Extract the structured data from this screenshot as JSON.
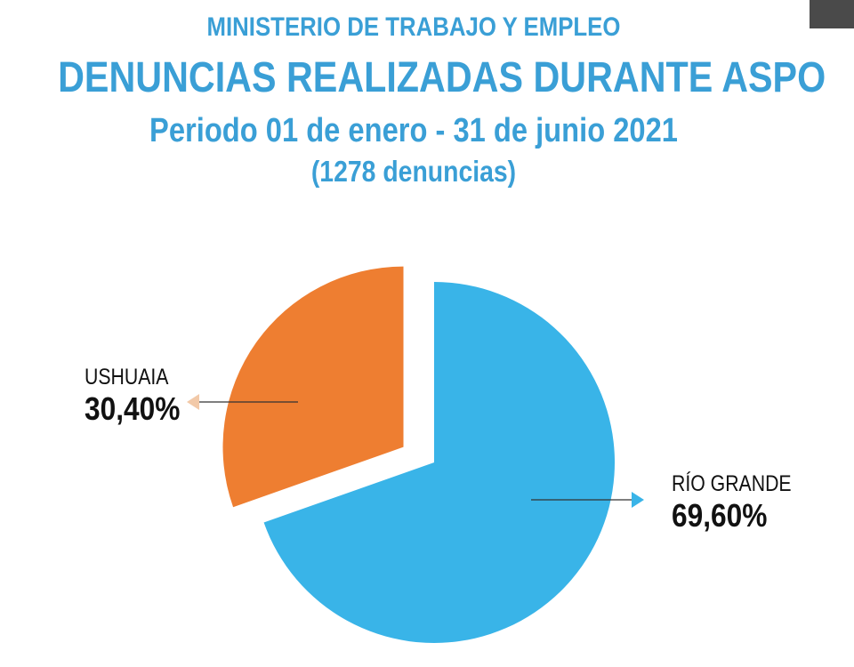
{
  "header": {
    "ministry": "MINISTERIO DE TRABAJO Y EMPLEO",
    "title": "DENUNCIAS REALIZADAS DURANTE ASPO",
    "period": "Periodo  01 de enero - 31 de junio 2021",
    "count": "(1278 denuncias)"
  },
  "chart_data": {
    "type": "pie",
    "title": "DENUNCIAS REALIZADAS DURANTE ASPO",
    "total": 1278,
    "slices": [
      {
        "name": "RÍO GRANDE",
        "value": 69.6,
        "label": "69,60%",
        "color": "#39b4e8",
        "exploded": false
      },
      {
        "name": "USHUAIA",
        "value": 30.4,
        "label": "30,40%",
        "color": "#ee7e31",
        "exploded": true
      }
    ]
  },
  "colors": {
    "title": "#3a9fd6",
    "leader_line": "#333333",
    "ushuaia_arrow": "#f2c9a8",
    "rio_grande_arrow": "#39b4e8"
  }
}
